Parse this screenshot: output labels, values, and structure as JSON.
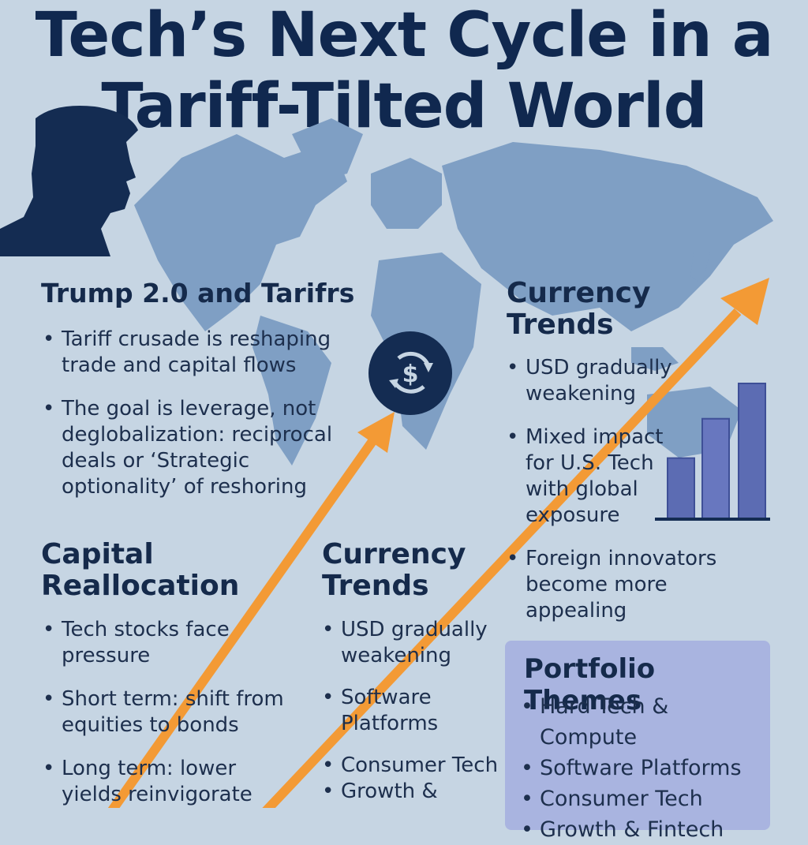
{
  "title": {
    "line1": "Tech’s Next Cycle in a",
    "line2": "Tariff-Tilted World"
  },
  "trump": {
    "heading": "Trump 2.0 and Tarifrs",
    "bullets": [
      "Tariff crusade is reshaping trade and capital flows",
      "The goal is leverage, not deglobalization: reciprocal deals or ‘Strategic optionality’ of reshoring"
    ]
  },
  "capital": {
    "heading": "Capital Reallocation",
    "bullets": [
      "Tech stocks face pressure",
      "Short term: shift from equities to bonds",
      "Long term: lower yields reinvigorate"
    ]
  },
  "currency_right": {
    "heading": "Currency Trends",
    "bullets": [
      "USD gradually weakening",
      "Mixed impact for U.S. Tech with global exposure",
      "Foreign innovators become more appealing"
    ]
  },
  "currency_mid": {
    "heading": "Currency Trends",
    "bullets": [
      "USD gradually weakening",
      "Software Platforms",
      "Consumer Tech",
      "Growth &"
    ]
  },
  "portfolio": {
    "heading": "Portfolio Themes",
    "items": [
      "Hard Tech & Compute",
      "Software Platforms",
      "Consumer Tech",
      "Growth & Fintech"
    ]
  },
  "icons": {
    "currency_cycle": "dollar-cycle-icon",
    "silhouette": "person-silhouette-icon"
  },
  "bar_values": [
    0.45,
    0.74,
    1.0
  ],
  "colors": {
    "navy": "#142c52",
    "orange": "#f39a35",
    "map": "#7f9fc4",
    "background": "#c6d5e3",
    "panel": "#a9b4e0"
  }
}
